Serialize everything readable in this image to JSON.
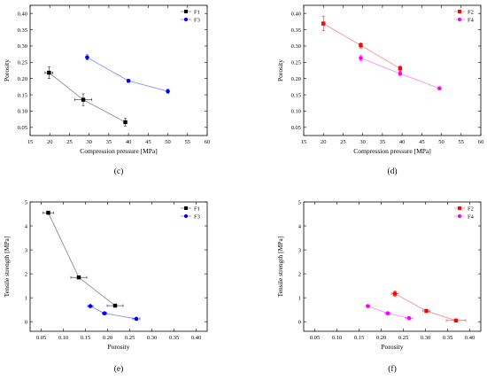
{
  "chart_data": [
    {
      "type": "scatter",
      "panel_label": "(c)",
      "xlabel": "Compression pressure [MPa]",
      "ylabel": "Porosity",
      "xlim": [
        15,
        60
      ],
      "ylim": [
        0.025,
        0.425
      ],
      "xticks": [
        15,
        20,
        25,
        30,
        35,
        40,
        45,
        50,
        55,
        60
      ],
      "yticks": [
        0.05,
        0.1,
        0.15,
        0.2,
        0.25,
        0.3,
        0.35,
        0.4
      ],
      "xtick_labels": [
        "15",
        "20",
        "25",
        "30",
        "35",
        "40",
        "45",
        "50",
        "55",
        "60"
      ],
      "ytick_labels": [
        "0.05",
        "0.10",
        "0.15",
        "0.20",
        "0.25",
        "0.30",
        "0.35",
        "0.40"
      ],
      "legend_position": "top-right",
      "series": [
        {
          "name": "F1",
          "color": "#000000",
          "marker": "square",
          "x": [
            19.8,
            28.5,
            39.2
          ],
          "y": [
            0.218,
            0.135,
            0.066
          ],
          "xerr": [
            1.0,
            2.2,
            0.0
          ],
          "yerr": [
            0.018,
            0.018,
            0.012
          ]
        },
        {
          "name": "F3",
          "color": "#0000ff",
          "marker": "circle",
          "x": [
            29.5,
            40.0,
            50.0
          ],
          "y": [
            0.265,
            0.193,
            0.161
          ],
          "xerr": [
            0.0,
            0.0,
            0.0
          ],
          "yerr": [
            0.008,
            0.005,
            0.006
          ]
        }
      ]
    },
    {
      "type": "scatter",
      "panel_label": "(d)",
      "xlabel": "Compression pressure [MPa]",
      "ylabel": "Porosity",
      "xlim": [
        15,
        60
      ],
      "ylim": [
        0.025,
        0.425
      ],
      "xticks": [
        15,
        20,
        25,
        30,
        35,
        40,
        45,
        50,
        55,
        60
      ],
      "yticks": [
        0.05,
        0.1,
        0.15,
        0.2,
        0.25,
        0.3,
        0.35,
        0.4
      ],
      "xtick_labels": [
        "15",
        "20",
        "25",
        "30",
        "35",
        "40",
        "45",
        "50",
        "55",
        "60"
      ],
      "ytick_labels": [
        "0.05",
        "0.10",
        "0.15",
        "0.20",
        "0.25",
        "0.30",
        "0.35",
        "0.40"
      ],
      "legend_position": "top-right",
      "series": [
        {
          "name": "F2",
          "color": "#ff0000",
          "marker": "square",
          "x": [
            20.0,
            29.5,
            39.5
          ],
          "y": [
            0.369,
            0.302,
            0.231
          ],
          "xerr": [
            0.0,
            0.0,
            0.0
          ],
          "yerr": [
            0.022,
            0.008,
            0.008
          ]
        },
        {
          "name": "F4",
          "color": "#ff00ff",
          "marker": "circle",
          "x": [
            29.5,
            39.5,
            49.5
          ],
          "y": [
            0.263,
            0.215,
            0.17
          ],
          "xerr": [
            0.0,
            0.0,
            0.0
          ],
          "yerr": [
            0.008,
            0.006,
            0.004
          ]
        }
      ]
    },
    {
      "type": "scatter",
      "panel_label": "(e)",
      "xlabel": "Porosity",
      "ylabel": "Tensile strength [MPa]",
      "xlim": [
        0.025,
        0.425
      ],
      "ylim": [
        -0.4,
        5.0
      ],
      "xticks": [
        0.05,
        0.1,
        0.15,
        0.2,
        0.25,
        0.3,
        0.35,
        0.4
      ],
      "yticks": [
        0,
        1,
        2,
        3,
        4,
        5
      ],
      "xtick_labels": [
        "0.05",
        "0.10",
        "0.15",
        "0.20",
        "0.25",
        "0.30",
        "0.35",
        "0.40"
      ],
      "ytick_labels": [
        "0",
        "1",
        "2",
        "3",
        "4",
        "5"
      ],
      "legend_position": "top-right",
      "series": [
        {
          "name": "F1",
          "color": "#000000",
          "marker": "square",
          "x": [
            0.066,
            0.135,
            0.217
          ],
          "y": [
            4.55,
            1.85,
            0.67
          ],
          "xerr": [
            0.012,
            0.018,
            0.018
          ],
          "yerr": [
            0.0,
            0.06,
            0.0
          ]
        },
        {
          "name": "F3",
          "color": "#0000ff",
          "marker": "circle",
          "x": [
            0.161,
            0.193,
            0.265
          ],
          "y": [
            0.65,
            0.35,
            0.12
          ],
          "xerr": [
            0.006,
            0.005,
            0.008
          ],
          "yerr": [
            0.0,
            0.0,
            0.0
          ]
        }
      ]
    },
    {
      "type": "scatter",
      "panel_label": "(f)",
      "xlabel": "Porosity",
      "ylabel": "Tensile strength [MPa]",
      "xlim": [
        0.025,
        0.425
      ],
      "ylim": [
        -0.4,
        5.0
      ],
      "xticks": [
        0.05,
        0.1,
        0.15,
        0.2,
        0.25,
        0.3,
        0.35,
        0.4
      ],
      "yticks": [
        0,
        1,
        2,
        3,
        4,
        5
      ],
      "xtick_labels": [
        "0.05",
        "0.10",
        "0.15",
        "0.20",
        "0.25",
        "0.30",
        "0.35",
        "0.40"
      ],
      "ytick_labels": [
        "0",
        "1",
        "2",
        "3",
        "4",
        "5"
      ],
      "legend_position": "top-right",
      "series": [
        {
          "name": "F2",
          "color": "#ff0000",
          "marker": "square",
          "x": [
            0.231,
            0.302,
            0.369
          ],
          "y": [
            1.17,
            0.45,
            0.05
          ],
          "xerr": [
            0.008,
            0.008,
            0.022
          ],
          "yerr": [
            0.12,
            0.0,
            0.0
          ]
        },
        {
          "name": "F4",
          "color": "#ff00ff",
          "marker": "circle",
          "x": [
            0.17,
            0.215,
            0.263
          ],
          "y": [
            0.65,
            0.35,
            0.15
          ],
          "xerr": [
            0.004,
            0.006,
            0.008
          ],
          "yerr": [
            0.0,
            0.0,
            0.0
          ]
        }
      ]
    }
  ]
}
